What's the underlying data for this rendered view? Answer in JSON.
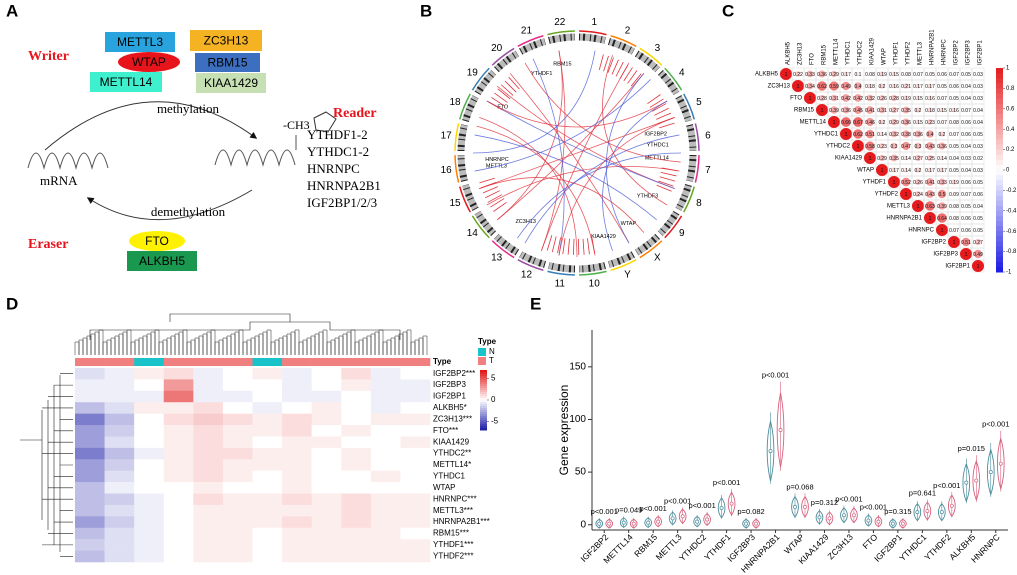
{
  "panels": [
    "A",
    "B",
    "C",
    "D",
    "E"
  ],
  "panel_a": {
    "writer": "Writer",
    "writer_genes": [
      "METTL3",
      "ZC3H13",
      "WTAP",
      "RBM15",
      "METTL14",
      "KIAA1429"
    ],
    "methylation": "methylation",
    "ch3": "-CH3",
    "reader": "Reader",
    "reader_genes": [
      "YTHDF1-2",
      "YTHDC1-2",
      "HNRNPC",
      "HNRNPA2B1",
      "IGF2BP1/2/3"
    ],
    "mrna": "mRNA",
    "demethylation": "demethylation",
    "eraser": "Eraser",
    "eraser_genes": [
      "FTO",
      "ALKBH5"
    ]
  },
  "panel_b": {
    "chromosomes": [
      "1",
      "2",
      "3",
      "4",
      "5",
      "6",
      "7",
      "8",
      "9",
      "X",
      "Y",
      "10",
      "11",
      "12",
      "13",
      "14",
      "15",
      "16",
      "17",
      "18",
      "19",
      "20",
      "21",
      "22"
    ],
    "genes": [
      "IGF2BP2",
      "YTHDC1",
      "METTL14",
      "YTHDF3",
      "WTAP",
      "KIAA1429",
      "ZC3H13",
      "METTL3",
      "HNRNPC",
      "RBM15",
      "YTHDF1",
      "FTO"
    ]
  },
  "panel_c": {
    "type": "correlation",
    "genes": [
      "ALKBH5",
      "ZC3H13",
      "FTO",
      "RBM15",
      "METTL14",
      "YTHDC1",
      "YTHDC2",
      "KIAA1429",
      "WTAP",
      "YTHDF1",
      "YTHDF2",
      "METTL3",
      "HNRNPA2B1",
      "HNRNPC",
      "IGF2BP2",
      "IGF2BP3",
      "IGF2BP1"
    ],
    "values": [
      [
        1,
        0.22,
        0.33,
        0.36,
        0.29,
        0.17,
        0.1,
        0.08,
        0.19,
        0.15,
        0.08,
        0.07,
        0.05,
        0.06,
        0.07,
        0.05,
        0.03
      ],
      [
        1,
        0.34,
        0.62,
        0.59,
        0.49,
        0.4,
        0.18,
        0.2,
        0.16,
        0.21,
        0.17,
        0.17,
        0.05,
        0.06,
        0.04,
        0.03
      ],
      [
        1,
        0.28,
        0.31,
        0.42,
        0.42,
        0.32,
        0.26,
        0.28,
        0.19,
        0.15,
        0.16,
        0.07,
        0.05,
        0.04,
        0.03
      ],
      [
        1,
        0.39,
        0.36,
        0.45,
        0.41,
        0.31,
        0.27,
        0.35,
        0.2,
        0.18,
        0.15,
        0.16,
        0.07,
        0.04
      ],
      [
        1,
        0.66,
        0.67,
        0.46,
        0.2,
        0.29,
        0.36,
        0.15,
        0.23,
        0.07,
        0.08,
        0.06,
        0.04
      ],
      [
        1,
        0.62,
        0.51,
        0.14,
        0.32,
        0.38,
        0.36,
        0.4,
        0.2,
        0.07,
        0.06,
        0.05
      ],
      [
        1,
        0.58,
        0.23,
        0.3,
        0.47,
        0.3,
        0.43,
        0.36,
        0.05,
        0.04,
        0.03
      ],
      [
        1,
        0.29,
        0.35,
        0.14,
        0.27,
        0.25,
        0.14,
        0.04,
        0.03,
        0.02
      ],
      [
        1,
        0.17,
        0.14,
        0.2,
        0.17,
        0.17,
        0.05,
        0.04,
        0.03
      ],
      [
        1,
        0.52,
        0.26,
        0.41,
        0.33,
        0.19,
        0.06,
        0.05
      ],
      [
        1,
        0.24,
        0.43,
        0.5,
        0.09,
        0.07,
        0.06
      ],
      [
        1,
        0.63,
        0.39,
        0.08,
        0.05,
        0.04
      ],
      [
        1,
        0.64,
        0.08,
        0.06,
        0.05
      ],
      [
        1,
        0.07,
        0.06,
        0.05
      ],
      [
        1,
        0.51,
        0.27
      ],
      [
        1,
        0.49
      ],
      [
        1
      ]
    ],
    "colorlim": [
      -1,
      1
    ],
    "colorticks": [
      1,
      0.8,
      0.6,
      0.4,
      0.2,
      0,
      -0.2,
      -0.4,
      -0.6,
      -0.8,
      -1
    ],
    "positive_color": "#e41a1c",
    "negative_color": "#1a1ae4"
  },
  "panel_d": {
    "type": "heatmap",
    "rows": [
      "IGF2BP2***",
      "IGF2BP3",
      "IGF2BP1",
      "ALKBH5*",
      "ZC3H13***",
      "FTO***",
      "KIAA1429",
      "YTHDC2**",
      "METTL14*",
      "YTHDC1",
      "WTAP",
      "HNRNPC***",
      "METTL3***",
      "HNRNPA2B1***",
      "RBM15***",
      "YTHDF1***",
      "YTHDF2***"
    ],
    "values": [
      [
        -1,
        -0.5,
        0.5,
        1,
        -0.5,
        0,
        0.5,
        -0.5,
        0,
        1,
        -0.5,
        0
      ],
      [
        -0.5,
        -0.5,
        0,
        3,
        -0.5,
        0,
        0,
        -0.5,
        0,
        0.5,
        -0.5,
        -0.5
      ],
      [
        -0.5,
        -0.5,
        -0.5,
        4,
        -0.5,
        -0.5,
        0,
        -0.5,
        -0.5,
        0,
        -0.5,
        -0.5
      ],
      [
        -2,
        -1,
        0.5,
        0.5,
        1,
        0,
        -0.5,
        0,
        0.5,
        0,
        -0.5,
        0
      ],
      [
        -4,
        -2,
        0,
        1,
        1.5,
        1,
        0.5,
        1,
        0.5,
        0,
        0.5,
        0.5
      ],
      [
        -3,
        -1.5,
        0,
        0.5,
        1,
        0.5,
        0.5,
        1,
        0,
        0.5,
        0,
        0
      ],
      [
        -3,
        -1,
        0,
        0.5,
        1,
        0.5,
        0,
        0.5,
        0.5,
        0,
        0,
        0.5
      ],
      [
        -4,
        -2,
        -0.5,
        0.5,
        1,
        1,
        0.5,
        0.5,
        0,
        0.5,
        0,
        0
      ],
      [
        -3,
        -1.5,
        0,
        0.5,
        1,
        0.5,
        0.5,
        0.5,
        0,
        0.5,
        0,
        0
      ],
      [
        -3,
        -1,
        0,
        0.5,
        1,
        0.5,
        0,
        0.5,
        0,
        0,
        0.5,
        0
      ],
      [
        -2,
        -0.5,
        0,
        0,
        0.5,
        0,
        0,
        0.5,
        0,
        0,
        0,
        0
      ],
      [
        -2,
        -1.5,
        -0.5,
        0,
        1,
        0.5,
        0.5,
        1,
        0.5,
        1,
        0.5,
        0.5
      ],
      [
        -2,
        -1,
        -0.5,
        0,
        0.5,
        0.5,
        0.5,
        0.5,
        0.5,
        1,
        0.5,
        0.5
      ],
      [
        -3,
        -1.5,
        -0.5,
        0,
        0.5,
        0.5,
        0.5,
        1,
        0.5,
        1,
        0.5,
        0.5
      ],
      [
        -2,
        -1,
        -0.5,
        0,
        0.5,
        0.5,
        0,
        0.5,
        0.5,
        0.5,
        0.5,
        0
      ],
      [
        -1.5,
        -1,
        -0.5,
        0,
        0.5,
        0.5,
        0,
        0.5,
        0.5,
        0.5,
        0.5,
        0.5
      ],
      [
        -2,
        -1,
        -0.5,
        0,
        0.5,
        0.5,
        0,
        0.5,
        0.5,
        0.5,
        0.5,
        0.5
      ]
    ],
    "type_label": "Type",
    "legend_title": "Type",
    "groups": [
      {
        "name": "N",
        "color": "#19c3c9"
      },
      {
        "name": "T",
        "color": "#f08080"
      }
    ],
    "column_groups": [
      1,
      1,
      0,
      1,
      1,
      1,
      0,
      1,
      1,
      1,
      1,
      1
    ],
    "colorlim": [
      -7,
      7
    ],
    "colorticks": [
      5,
      0,
      -5
    ],
    "low_color": "#1c1ca8",
    "high_color": "#e01010"
  },
  "panel_e": {
    "type": "violin",
    "ylabel": "Gene expression",
    "categories": [
      "IGF2BP2",
      "METTL14",
      "RBM15",
      "METTL3",
      "YTHDC2",
      "YTHDF1",
      "IGF2BP3",
      "HNRNPA2B1",
      "WTAP",
      "KIAA1429",
      "ZC3H13",
      "FTO",
      "IGF2BP1",
      "YTHDC1",
      "YTHDF2",
      "ALKBH5",
      "HNRNPC"
    ],
    "series": [
      {
        "name": "N",
        "color": "#4a8c9c",
        "values": [
          1,
          2,
          2,
          6,
          3,
          16,
          1,
          70,
          17,
          7,
          9,
          4,
          1,
          12,
          12,
          40,
          50
        ]
      },
      {
        "name": "T",
        "color": "#d6607e",
        "values": [
          1,
          1,
          3,
          8,
          5,
          20,
          1,
          90,
          17,
          6,
          9,
          3,
          1,
          13,
          18,
          42,
          58
        ]
      }
    ],
    "pvalues": [
      "p<0.001",
      "p=0.049",
      "p<0.001",
      "p<0.001",
      "p<0.001",
      "p<0.001",
      "p=0.082",
      "p<0.001",
      "p=0.068",
      "p=0.312",
      "p<0.001",
      "p<0.001",
      "p=0.315",
      "p=0.641",
      "p<0.001",
      "p=0.015",
      "p<0.001"
    ],
    "ylim": [
      -5,
      185
    ],
    "yticks": [
      0,
      50,
      100,
      150
    ]
  }
}
